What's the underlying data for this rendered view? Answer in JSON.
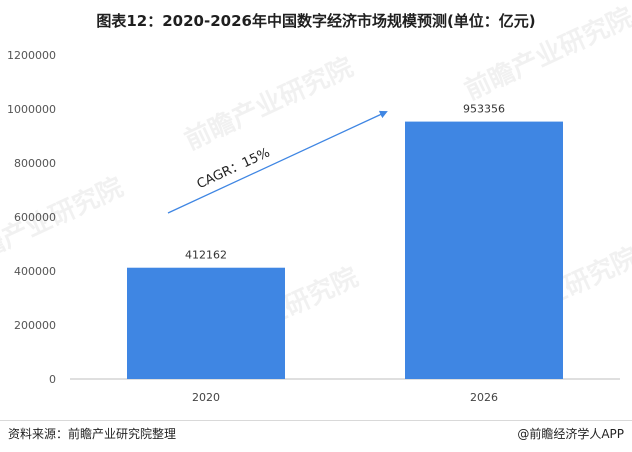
{
  "chart_data": {
    "type": "bar",
    "title": "图表12：2020-2026年中国数字经济市场规模预测(单位：亿元)",
    "categories": [
      "2020",
      "2026"
    ],
    "values": [
      412162,
      953356
    ],
    "data_labels": [
      "412162",
      "953356"
    ],
    "yticks": [
      0,
      200000,
      400000,
      600000,
      800000,
      1000000,
      1200000
    ],
    "ylim": [
      0,
      1200000
    ],
    "grid": false,
    "bar_color": "#3f86e3",
    "annotation": {
      "text": "CAGR：15%",
      "arrow_color": "#3f86e3"
    }
  },
  "watermark": "前瞻产业研究院",
  "footer": {
    "source": "资料来源：前瞻产业研究院整理",
    "credit": "@前瞻经济学人APP"
  }
}
